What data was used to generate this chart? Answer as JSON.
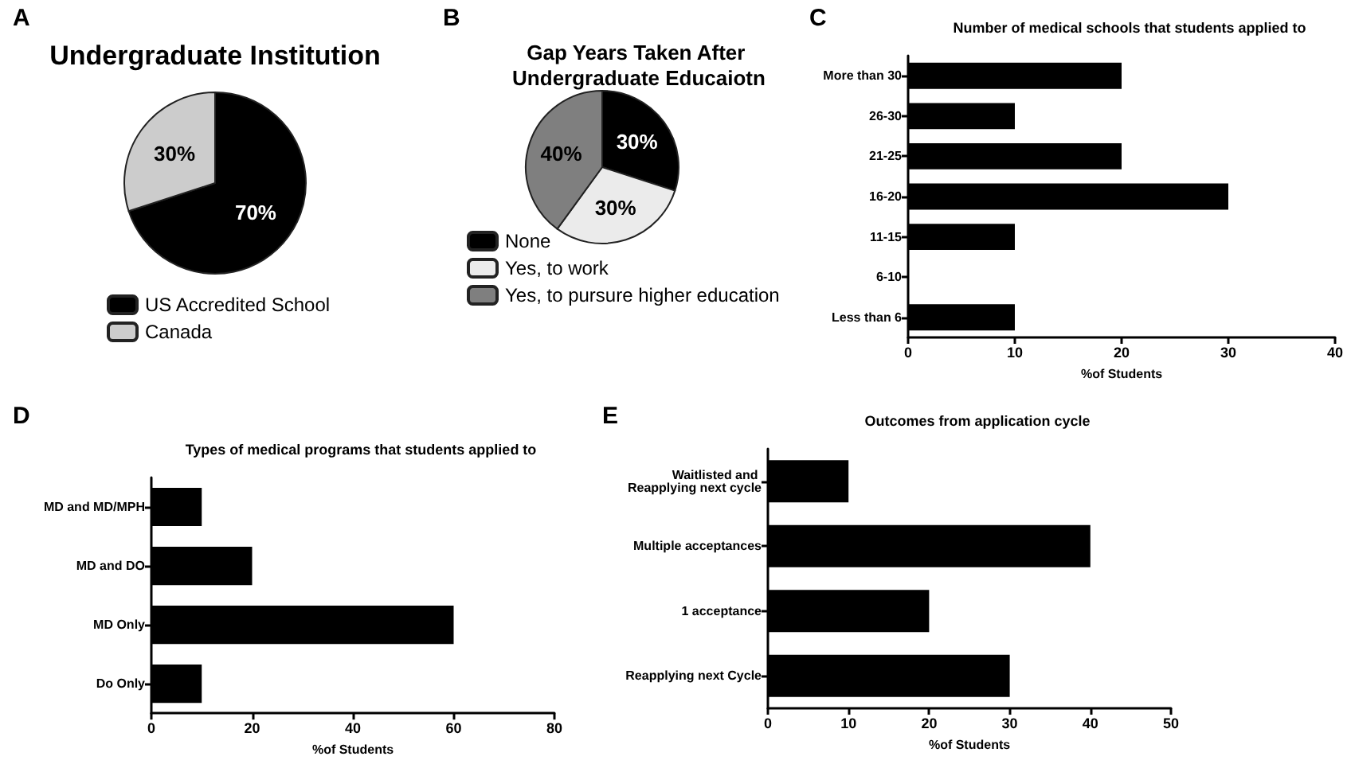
{
  "chart_data": [
    {
      "type": "pie",
      "title": "Undergraduate Institution",
      "annotations": [
        "A"
      ],
      "categories": [
        "US Accredited School",
        "Canada"
      ],
      "values": [
        70,
        30
      ],
      "colors": [
        "#000000",
        "#cccccc"
      ],
      "value_labels": [
        "70%",
        "30%"
      ],
      "legend": "bottom"
    },
    {
      "type": "pie",
      "title": "Gap Years Taken After Undergraduate Educaiotn",
      "annotations": [
        "B"
      ],
      "categories": [
        "None",
        "Yes, to work",
        "Yes, to pursure higher education"
      ],
      "values": [
        30,
        30,
        40
      ],
      "colors": [
        "#000000",
        "#ebebeb",
        "#7f7f7f"
      ],
      "value_labels": [
        "30%",
        "30%",
        "40%"
      ],
      "legend": "bottom"
    },
    {
      "type": "bar",
      "orientation": "horizontal",
      "title": "Number of medical schools that students applied to",
      "annotations": [
        "C"
      ],
      "xlabel": "%of Students",
      "categories": [
        "More than 30",
        "26-30",
        "21-25",
        "16-20",
        "11-15",
        "6-10",
        "Less than 6"
      ],
      "values": [
        20,
        10,
        20,
        30,
        10,
        0,
        10
      ],
      "color": "#000000",
      "xlim": [
        0,
        40
      ],
      "xticks": [
        0,
        10,
        20,
        30,
        40
      ],
      "grid": false
    },
    {
      "type": "bar",
      "orientation": "horizontal",
      "title": "Types of medical programs that students applied to",
      "annotations": [
        "D"
      ],
      "xlabel": "%of Students",
      "categories": [
        "MD and MD/MPH",
        "MD and DO",
        "MD Only",
        "Do Only"
      ],
      "values": [
        10,
        20,
        60,
        10
      ],
      "color": "#000000",
      "xlim": [
        0,
        80
      ],
      "xticks": [
        0,
        20,
        40,
        60,
        80
      ],
      "grid": false
    },
    {
      "type": "bar",
      "orientation": "horizontal",
      "title": "Outcomes from application cycle",
      "annotations": [
        "E"
      ],
      "xlabel": "%of Students",
      "categories": [
        "Waitlisted and Reapplying next cycle",
        "Multiple acceptances",
        "1 acceptance",
        "Reapplying next Cycle"
      ],
      "values": [
        10,
        40,
        20,
        30
      ],
      "color": "#000000",
      "xlim": [
        0,
        50
      ],
      "xticks": [
        0,
        10,
        20,
        30,
        40,
        50
      ],
      "grid": false
    }
  ]
}
